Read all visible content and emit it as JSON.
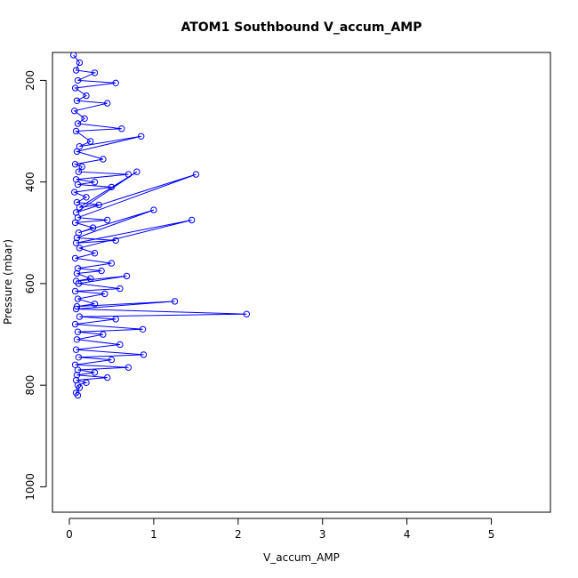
{
  "chart_data": {
    "type": "line",
    "title": "ATOM1 Southbound V_accum_AMP",
    "xlabel": "V_accum_AMP",
    "ylabel": "Pressure (mbar)",
    "xlim": [
      -0.2,
      5.7
    ],
    "ylim": [
      1050,
      145
    ],
    "y_reversed": true,
    "xticks": [
      0,
      1,
      2,
      3,
      4,
      5
    ],
    "yticks": [
      200,
      400,
      600,
      800,
      1000
    ],
    "marker": "open-circle",
    "grid": false,
    "legend": "none",
    "series": [
      {
        "values_x": [
          0.05,
          0.12,
          0.08,
          0.3,
          0.1,
          0.55,
          0.07,
          0.2,
          0.09,
          0.45,
          0.06,
          0.18,
          0.1,
          0.62,
          0.08,
          0.25,
          0.12,
          0.85,
          0.09,
          0.4,
          0.07,
          0.15,
          0.11,
          0.7,
          0.08,
          0.3,
          0.1,
          0.5,
          0.06,
          0.2,
          0.09,
          0.35,
          0.12,
          0.8,
          0.08,
          1.5,
          0.1,
          0.45,
          0.07,
          0.28,
          0.11,
          1.0,
          0.09,
          0.55,
          0.08,
          1.45,
          0.12,
          0.3,
          0.07,
          0.5,
          0.1,
          0.38,
          0.09,
          0.25,
          0.08,
          0.68,
          0.11,
          0.6,
          0.07,
          0.42,
          0.1,
          0.3,
          0.09,
          1.25,
          0.08,
          2.1,
          0.12,
          0.55,
          0.07,
          0.87,
          0.1,
          0.4,
          0.09,
          0.6,
          0.08,
          0.88,
          0.11,
          0.5,
          0.07,
          0.7,
          0.1,
          0.3,
          0.09,
          0.45,
          0.08,
          0.2,
          0.1,
          0.12,
          0.08,
          0.1
        ],
        "values_y": [
          150,
          165,
          180,
          185,
          200,
          205,
          215,
          230,
          240,
          245,
          260,
          275,
          285,
          295,
          300,
          320,
          330,
          310,
          340,
          355,
          365,
          370,
          380,
          385,
          395,
          400,
          405,
          410,
          420,
          430,
          440,
          445,
          450,
          380,
          460,
          385,
          470,
          475,
          480,
          490,
          500,
          455,
          510,
          515,
          520,
          475,
          530,
          540,
          550,
          560,
          570,
          575,
          580,
          590,
          595,
          585,
          600,
          610,
          615,
          620,
          630,
          640,
          645,
          635,
          650,
          660,
          665,
          670,
          680,
          690,
          695,
          700,
          710,
          720,
          730,
          740,
          745,
          750,
          760,
          765,
          770,
          775,
          780,
          785,
          790,
          795,
          800,
          805,
          815,
          820
        ]
      }
    ]
  }
}
